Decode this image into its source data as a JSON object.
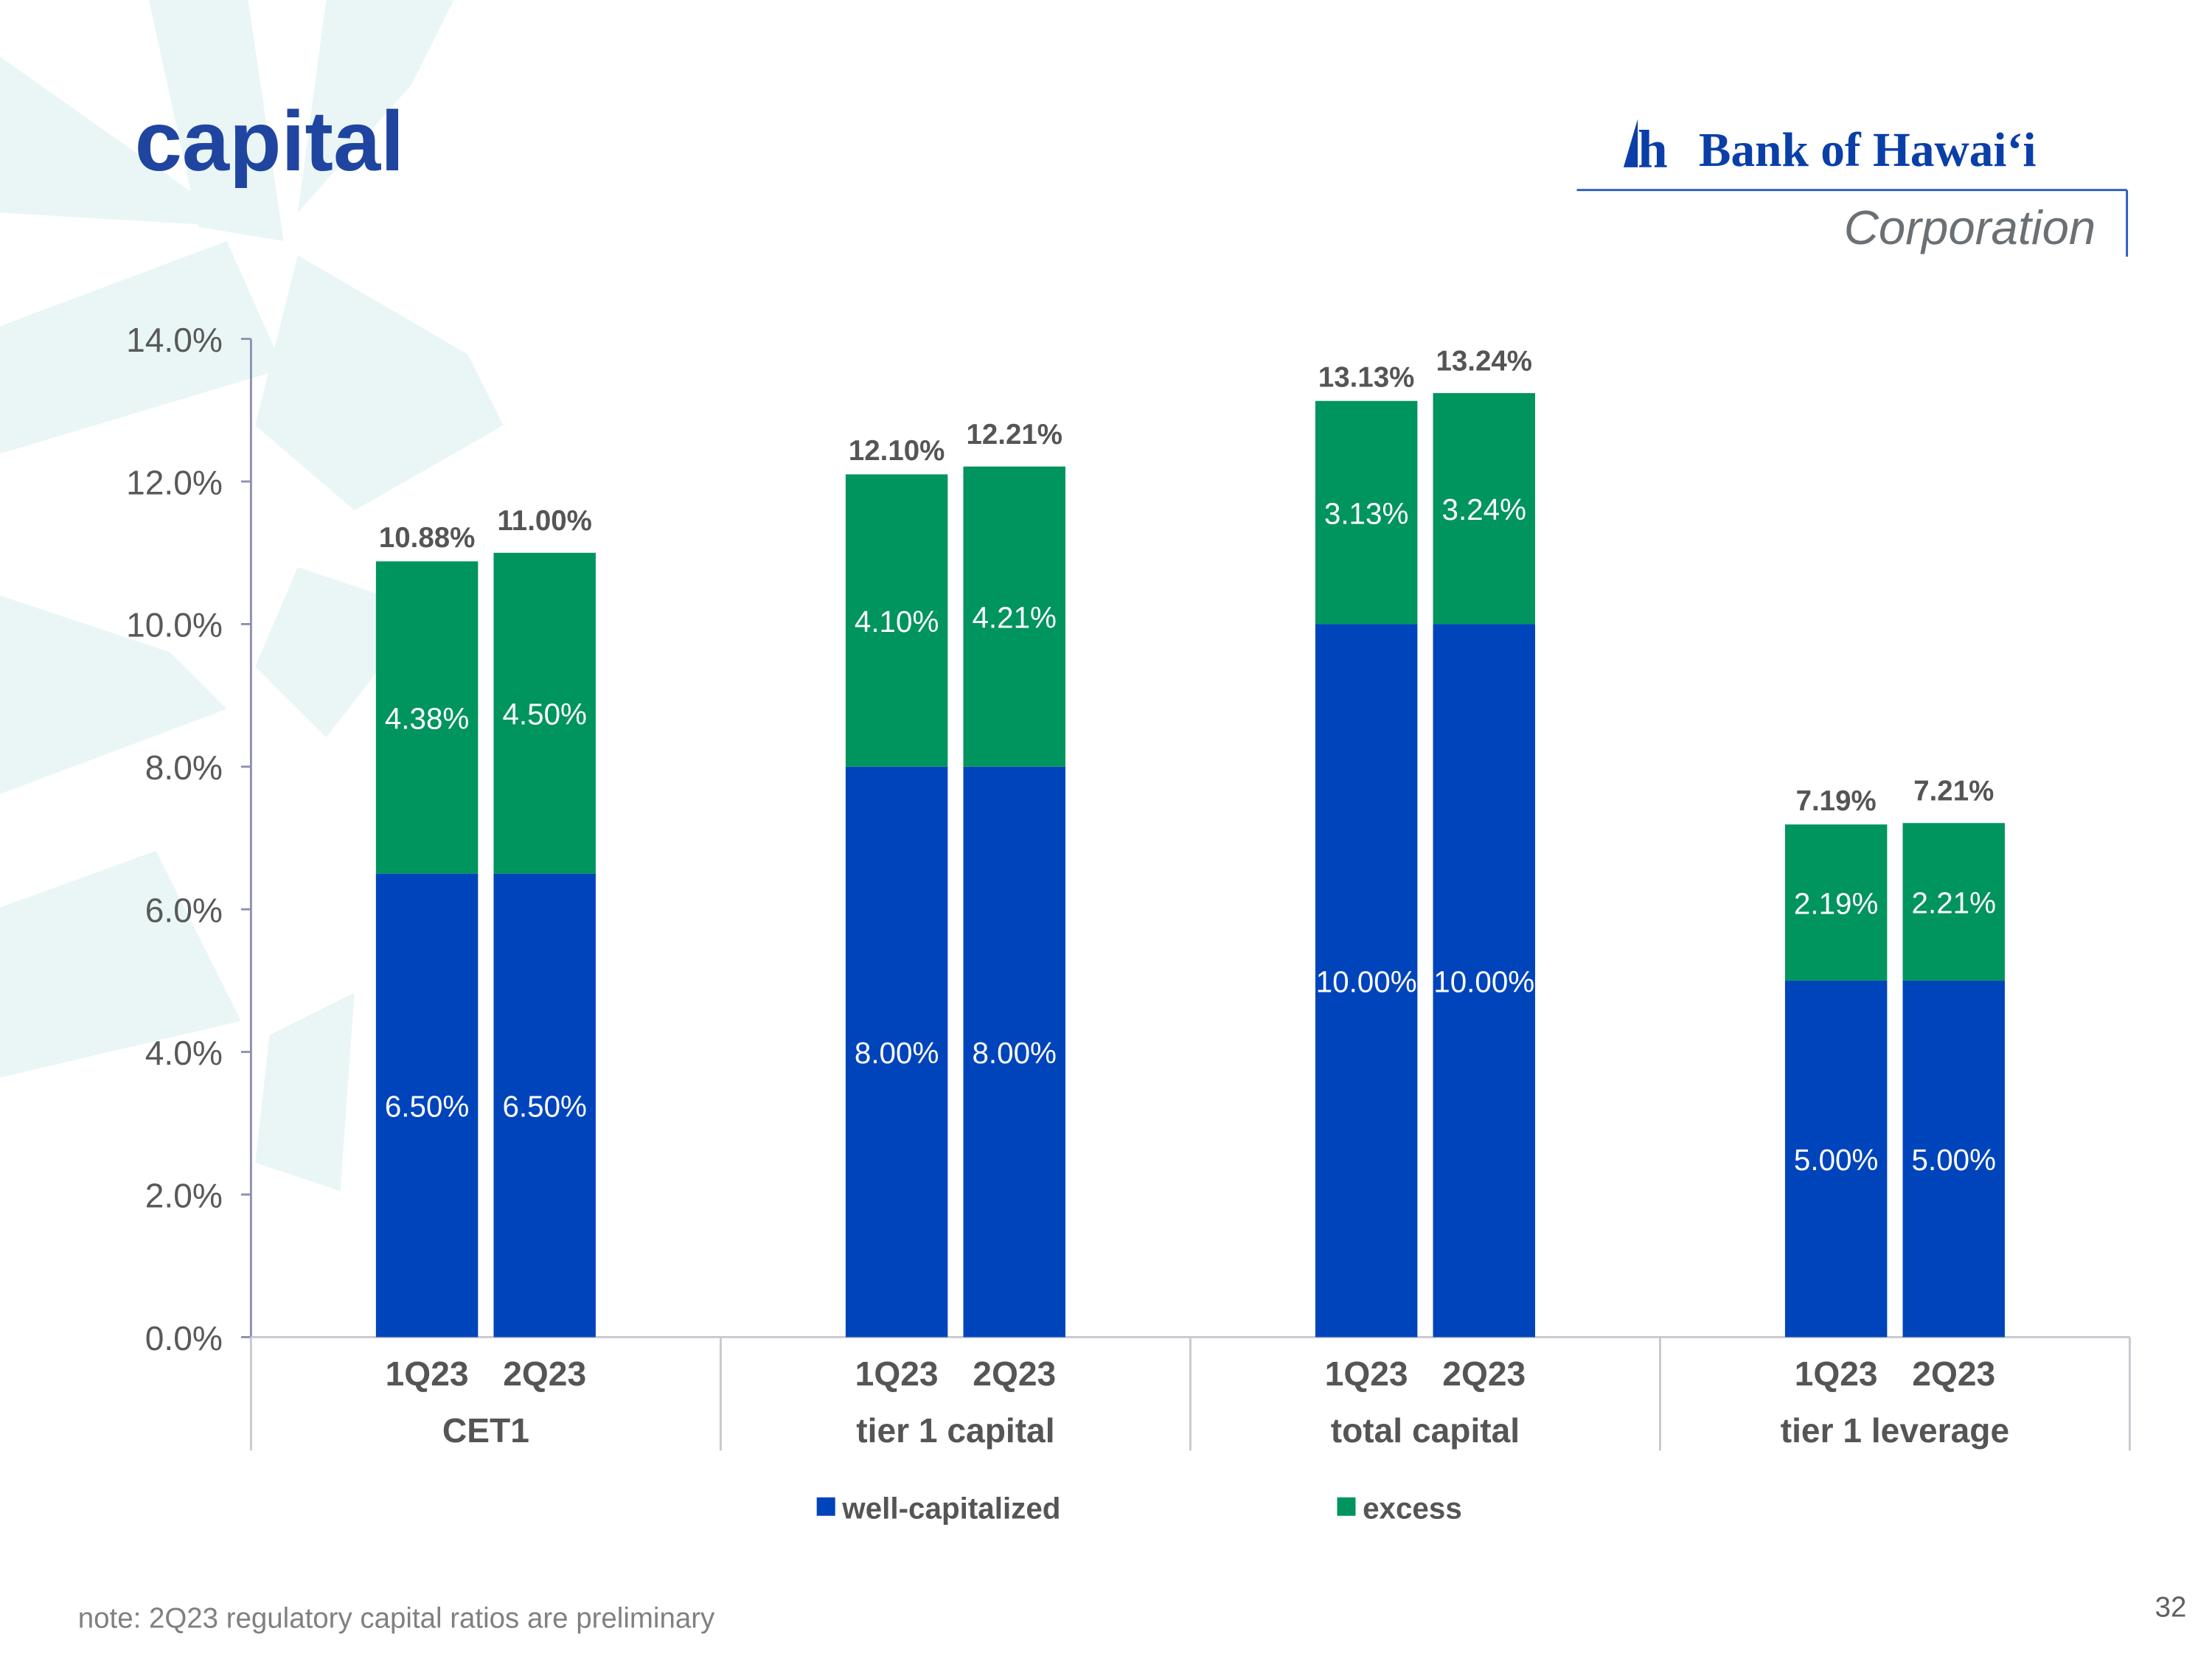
{
  "title": "capital",
  "logo": {
    "name": "Bank of Hawai‘i",
    "sub": "Corporation"
  },
  "page_number": "32",
  "note": "note: 2Q23 regulatory capital ratios are preliminary",
  "colors": {
    "well_capitalized": "#0044BB",
    "excess": "#00945E",
    "title": "#1F45A0"
  },
  "chart_data": {
    "type": "bar",
    "stacked": true,
    "ylim": [
      0,
      14
    ],
    "yticks": [
      "0.0%",
      "2.0%",
      "4.0%",
      "6.0%",
      "8.0%",
      "10.0%",
      "12.0%",
      "14.0%"
    ],
    "groups": [
      "CET1",
      "tier 1 capital",
      "total capital",
      "tier 1 leverage"
    ],
    "periods": [
      "1Q23",
      "2Q23"
    ],
    "series": [
      {
        "name": "well-capitalized",
        "values": [
          [
            6.5,
            6.5
          ],
          [
            8.0,
            8.0
          ],
          [
            10.0,
            10.0
          ],
          [
            5.0,
            5.0
          ]
        ],
        "labels": [
          [
            "6.50%",
            "6.50%"
          ],
          [
            "8.00%",
            "8.00%"
          ],
          [
            "10.00%",
            "10.00%"
          ],
          [
            "5.00%",
            "5.00%"
          ]
        ]
      },
      {
        "name": "excess",
        "values": [
          [
            4.38,
            4.5
          ],
          [
            4.1,
            4.21
          ],
          [
            3.13,
            3.24
          ],
          [
            2.19,
            2.21
          ]
        ],
        "labels": [
          [
            "4.38%",
            "4.50%"
          ],
          [
            "4.10%",
            "4.21%"
          ],
          [
            "3.13%",
            "3.24%"
          ],
          [
            "2.19%",
            "2.21%"
          ]
        ]
      }
    ],
    "totals": [
      [
        "10.88%",
        "11.00%"
      ],
      [
        "12.10%",
        "12.21%"
      ],
      [
        "13.13%",
        "13.24%"
      ],
      [
        "7.19%",
        "7.21%"
      ]
    ],
    "legend": {
      "position": "bottom",
      "items": [
        "well-capitalized",
        "excess"
      ]
    }
  }
}
